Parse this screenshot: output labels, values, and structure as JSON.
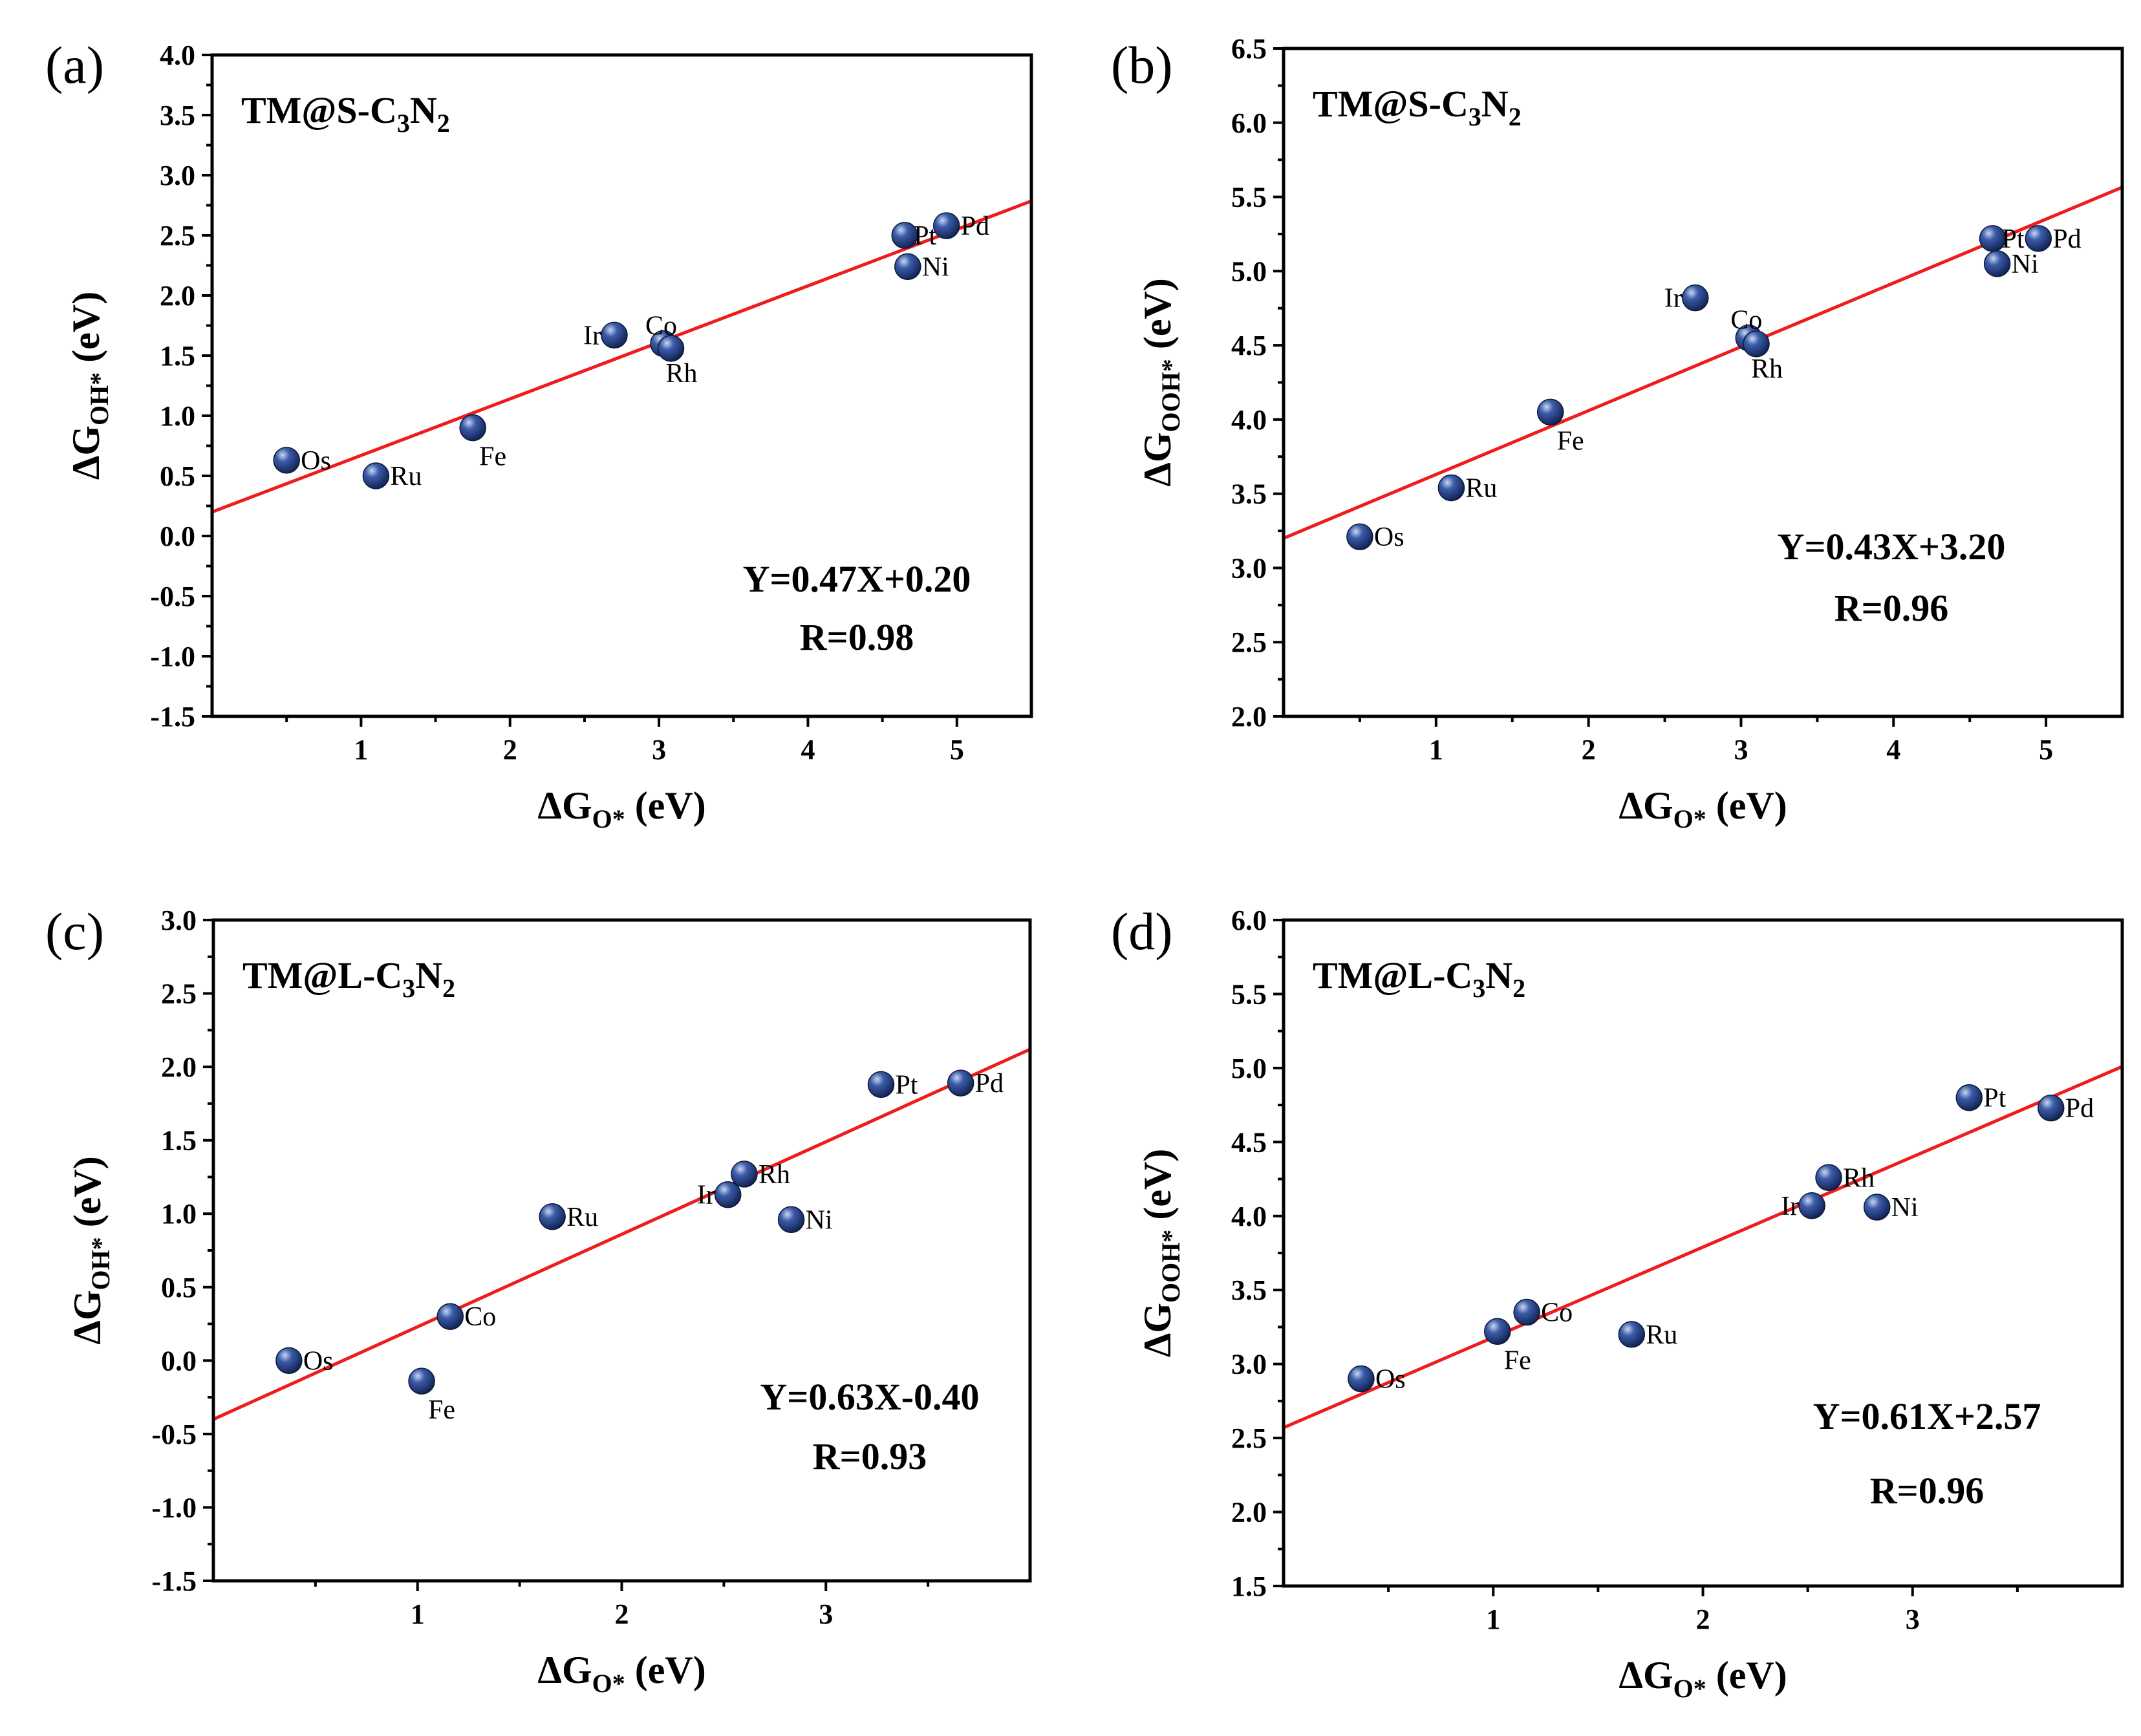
{
  "figure": {
    "style": {
      "line_color": "#ee1c1c",
      "marker_color": "#1f3a7a",
      "marker_highlight": "#9fb4e0"
    }
  },
  "chart_data": [
    {
      "type": "scatter",
      "panel_letter": "(a)",
      "system": {
        "prefix": "TM@S-C",
        "sub1": "3",
        "mid": "N",
        "sub2": "2"
      },
      "xlabel": {
        "main": "ΔG",
        "sub": "O*",
        "unit": " (eV)"
      },
      "ylabel": {
        "main": "ΔG",
        "sub": "OH*",
        "unit": " (eV)"
      },
      "xlim": [
        0,
        5.5
      ],
      "ylim": [
        -1.5,
        4.0
      ],
      "xticks": [
        1,
        2,
        3,
        4,
        5
      ],
      "yticks": [
        -1.5,
        -1.0,
        -0.5,
        0.0,
        0.5,
        1.0,
        1.5,
        2.0,
        2.5,
        3.0,
        3.5,
        4.0
      ],
      "xtick_labels": [
        "1",
        "2",
        "3",
        "4",
        "5"
      ],
      "ytick_labels": [
        "-1.5",
        "-1.0",
        "-0.5",
        "0.0",
        "0.5",
        "1.0",
        "1.5",
        "2.0",
        "2.5",
        "3.0",
        "3.5",
        "4.0"
      ],
      "fit": {
        "slope": 0.47,
        "intercept": 0.2
      },
      "equation": "Y=0.47X+0.20",
      "r_text": "R=0.98",
      "points": [
        {
          "name": "Os",
          "x": 0.5,
          "y": 0.63,
          "label_pos": "right"
        },
        {
          "name": "Ru",
          "x": 1.1,
          "y": 0.5,
          "label_pos": "right"
        },
        {
          "name": "Fe",
          "x": 1.75,
          "y": 0.9,
          "label_pos": "below-right"
        },
        {
          "name": "Ir",
          "x": 2.7,
          "y": 1.67,
          "label_pos": "left"
        },
        {
          "name": "Co",
          "x": 3.03,
          "y": 1.6,
          "label_pos": "above"
        },
        {
          "name": "Rh",
          "x": 3.08,
          "y": 1.56,
          "label_pos": "below"
        },
        {
          "name": "Pt",
          "x": 4.65,
          "y": 2.5,
          "label_pos": "right-tight"
        },
        {
          "name": "Pd",
          "x": 4.93,
          "y": 2.58,
          "label_pos": "right"
        },
        {
          "name": "Ni",
          "x": 4.67,
          "y": 2.24,
          "label_pos": "right"
        }
      ]
    },
    {
      "type": "scatter",
      "panel_letter": "(b)",
      "system": {
        "prefix": "TM@S-C",
        "sub1": "3",
        "mid": "N",
        "sub2": "2"
      },
      "xlabel": {
        "main": "ΔG",
        "sub": "O*",
        "unit": " (eV)"
      },
      "ylabel": {
        "main": "ΔG",
        "sub": "OOH*",
        "unit": " (eV)"
      },
      "xlim": [
        0,
        5.5
      ],
      "ylim": [
        2.0,
        6.5
      ],
      "xticks": [
        1,
        2,
        3,
        4,
        5
      ],
      "yticks": [
        2.0,
        2.5,
        3.0,
        3.5,
        4.0,
        4.5,
        5.0,
        5.5,
        6.0,
        6.5
      ],
      "xtick_labels": [
        "1",
        "2",
        "3",
        "4",
        "5"
      ],
      "ytick_labels": [
        "2.0",
        "2.5",
        "3.0",
        "3.5",
        "4.0",
        "4.5",
        "5.0",
        "5.5",
        "6.0",
        "6.5"
      ],
      "fit": {
        "slope": 0.43,
        "intercept": 3.2
      },
      "equation": "Y=0.43X+3.20",
      "r_text": "R=0.96",
      "points": [
        {
          "name": "Os",
          "x": 0.5,
          "y": 3.21,
          "label_pos": "right"
        },
        {
          "name": "Ru",
          "x": 1.1,
          "y": 3.54,
          "label_pos": "right"
        },
        {
          "name": "Fe",
          "x": 1.75,
          "y": 4.05,
          "label_pos": "below-right"
        },
        {
          "name": "Ir",
          "x": 2.7,
          "y": 4.82,
          "label_pos": "left"
        },
        {
          "name": "Co",
          "x": 3.05,
          "y": 4.55,
          "label_pos": "above"
        },
        {
          "name": "Rh",
          "x": 3.1,
          "y": 4.51,
          "label_pos": "below"
        },
        {
          "name": "Pt",
          "x": 4.65,
          "y": 5.22,
          "label_pos": "right-tight"
        },
        {
          "name": "Pd",
          "x": 4.95,
          "y": 5.22,
          "label_pos": "right"
        },
        {
          "name": "Ni",
          "x": 4.68,
          "y": 5.05,
          "label_pos": "right"
        }
      ]
    },
    {
      "type": "scatter",
      "panel_letter": "(c)",
      "system": {
        "prefix": "TM@L-C",
        "sub1": "3",
        "mid": "N",
        "sub2": "2"
      },
      "xlabel": {
        "main": "ΔG",
        "sub": "O*",
        "unit": " (eV)"
      },
      "ylabel": {
        "main": "ΔG",
        "sub": "OH*",
        "unit": " (eV)"
      },
      "xlim": [
        0,
        4.0
      ],
      "ylim": [
        -1.5,
        3.0
      ],
      "xticks": [
        1,
        2,
        3
      ],
      "yticks": [
        -1.5,
        -1.0,
        -0.5,
        0.0,
        0.5,
        1.0,
        1.5,
        2.0,
        2.5,
        3.0
      ],
      "xtick_labels": [
        "1",
        "2",
        "3"
      ],
      "ytick_labels": [
        "-1.5",
        "-1.0",
        "-0.5",
        "0.0",
        "0.5",
        "1.0",
        "1.5",
        "2.0",
        "2.5",
        "3.0"
      ],
      "fit": {
        "slope": 0.63,
        "intercept": -0.4
      },
      "equation": "Y=0.63X-0.40",
      "r_text": "R=0.93",
      "points": [
        {
          "name": "Os",
          "x": 0.37,
          "y": 0.0,
          "label_pos": "right"
        },
        {
          "name": "Fe",
          "x": 1.02,
          "y": -0.14,
          "label_pos": "below-right"
        },
        {
          "name": "Co",
          "x": 1.16,
          "y": 0.3,
          "label_pos": "right"
        },
        {
          "name": "Ru",
          "x": 1.66,
          "y": 0.98,
          "label_pos": "right"
        },
        {
          "name": "Ir",
          "x": 2.52,
          "y": 1.13,
          "label_pos": "left"
        },
        {
          "name": "Rh",
          "x": 2.6,
          "y": 1.27,
          "label_pos": "right"
        },
        {
          "name": "Ni",
          "x": 2.83,
          "y": 0.96,
          "label_pos": "right"
        },
        {
          "name": "Pt",
          "x": 3.27,
          "y": 1.88,
          "label_pos": "right"
        },
        {
          "name": "Pd",
          "x": 3.66,
          "y": 1.89,
          "label_pos": "right"
        }
      ]
    },
    {
      "type": "scatter",
      "panel_letter": "(d)",
      "system": {
        "prefix": "TM@L-C",
        "sub1": "3",
        "mid": "N",
        "sub2": "2"
      },
      "xlabel": {
        "main": "ΔG",
        "sub": "O*",
        "unit": " (eV)"
      },
      "ylabel": {
        "main": "ΔG",
        "sub": "OOH*",
        "unit": " (eV)"
      },
      "xlim": [
        0,
        4.0
      ],
      "ylim": [
        1.5,
        6.0
      ],
      "xticks": [
        1,
        2,
        3
      ],
      "yticks": [
        1.5,
        2.0,
        2.5,
        3.0,
        3.5,
        4.0,
        4.5,
        5.0,
        5.5,
        6.0
      ],
      "xtick_labels": [
        "1",
        "2",
        "3"
      ],
      "ytick_labels": [
        "1.5",
        "2.0",
        "2.5",
        "3.0",
        "3.5",
        "4.0",
        "4.5",
        "5.0",
        "5.5",
        "6.0"
      ],
      "fit": {
        "slope": 0.61,
        "intercept": 2.57
      },
      "equation": "Y=0.61X+2.57",
      "r_text": "R=0.96",
      "points": [
        {
          "name": "Os",
          "x": 0.37,
          "y": 2.9,
          "label_pos": "right"
        },
        {
          "name": "Fe",
          "x": 1.02,
          "y": 3.22,
          "label_pos": "below-right"
        },
        {
          "name": "Co",
          "x": 1.16,
          "y": 3.35,
          "label_pos": "right"
        },
        {
          "name": "Ru",
          "x": 1.66,
          "y": 3.2,
          "label_pos": "right"
        },
        {
          "name": "Ir",
          "x": 2.52,
          "y": 4.07,
          "label_pos": "left"
        },
        {
          "name": "Rh",
          "x": 2.6,
          "y": 4.26,
          "label_pos": "right"
        },
        {
          "name": "Ni",
          "x": 2.83,
          "y": 4.06,
          "label_pos": "right"
        },
        {
          "name": "Pt",
          "x": 3.27,
          "y": 4.8,
          "label_pos": "right"
        },
        {
          "name": "Pd",
          "x": 3.66,
          "y": 4.73,
          "label_pos": "right"
        }
      ]
    }
  ]
}
